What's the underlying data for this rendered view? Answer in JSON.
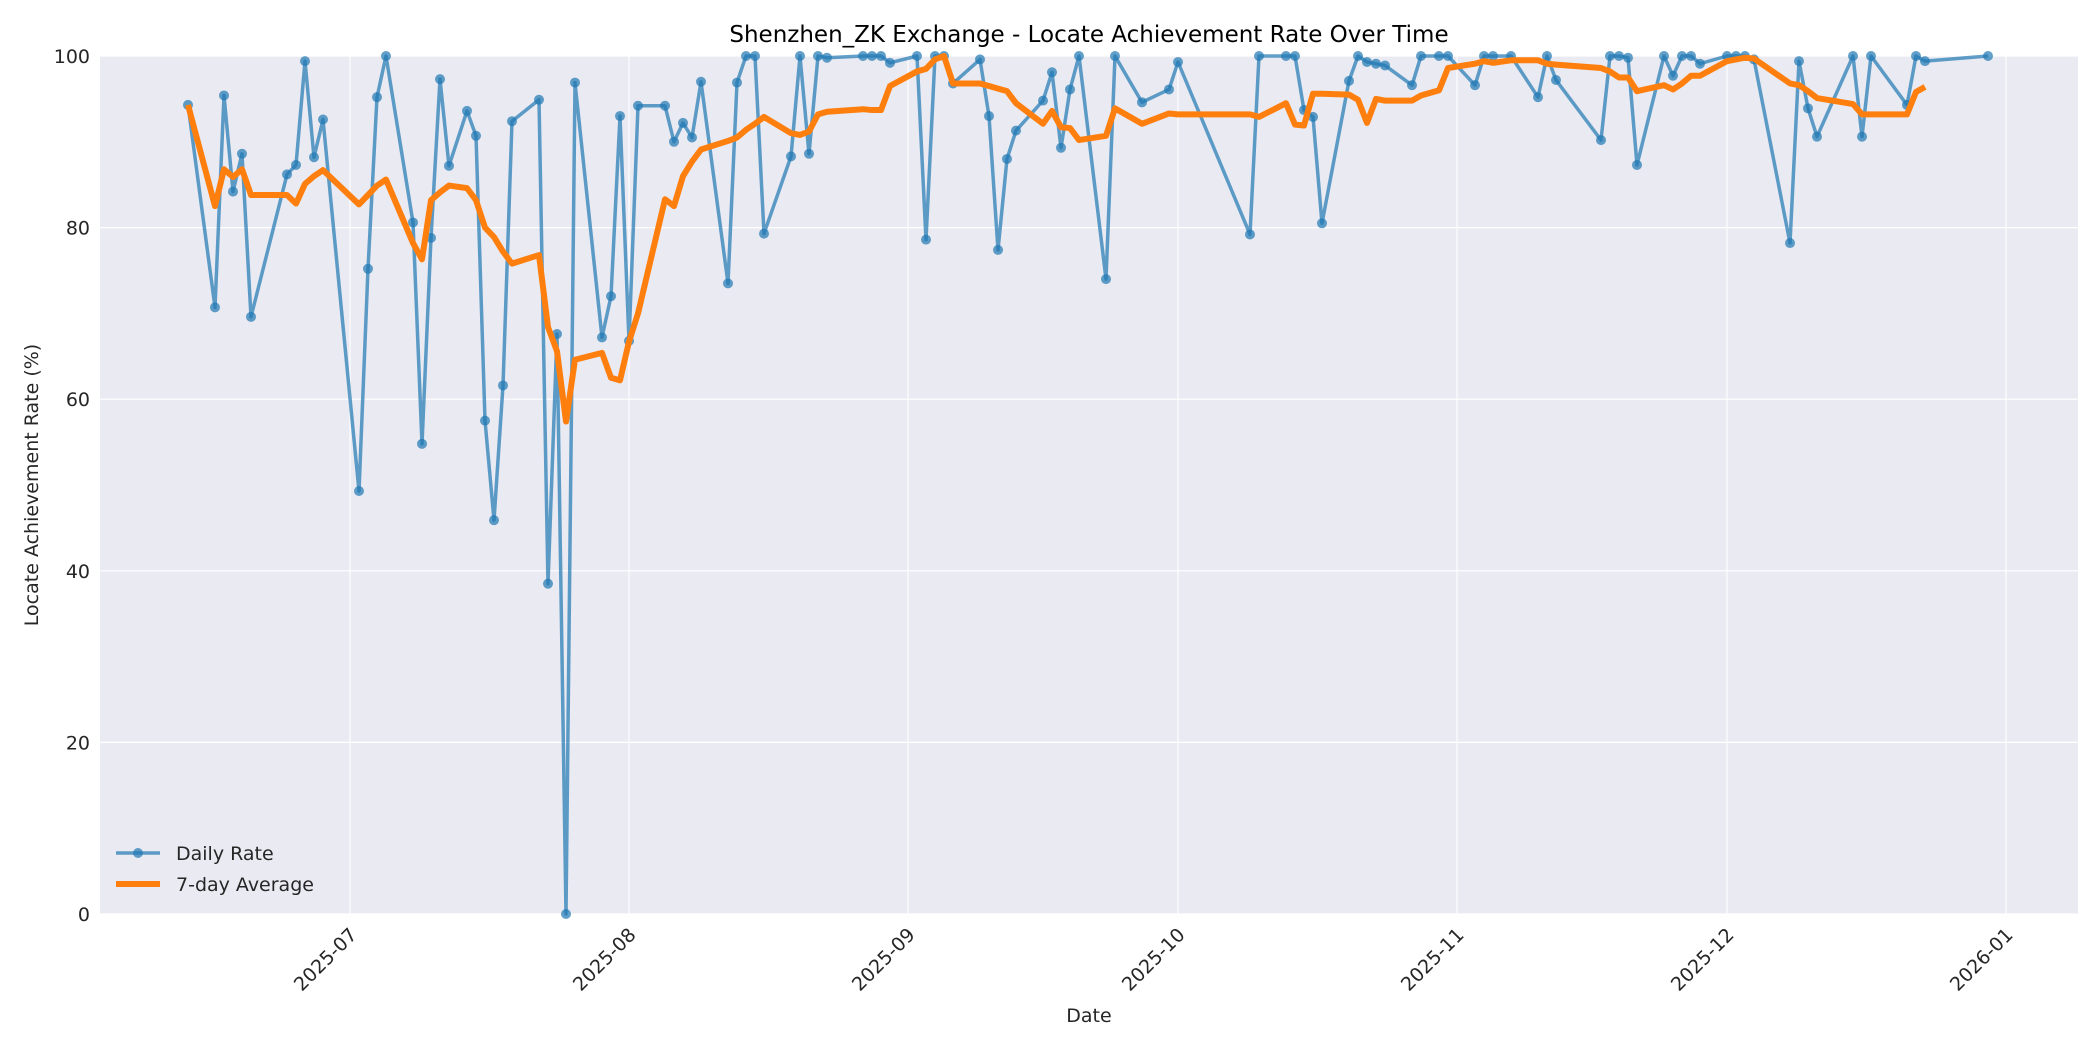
{
  "chart_data": {
    "type": "line",
    "title": "Shenzhen_ZK Exchange - Locate Achievement Rate Over Time",
    "xlabel": "Date",
    "ylabel": "Locate Achievement Rate (%)",
    "ylim": [
      0,
      100
    ],
    "yticks": [
      0,
      20,
      40,
      60,
      80,
      100
    ],
    "xticks": [
      "2025-07",
      "2025-08",
      "2025-09",
      "2025-10",
      "2025-11",
      "2025-12",
      "2026-01"
    ],
    "grid": true,
    "legend_position": "lower left",
    "colors": {
      "daily": "#1f77b4",
      "avg": "#ff7f0e",
      "plot_bg": "#eaeaf2",
      "grid": "#ffffff"
    },
    "series": [
      {
        "name": "Daily Rate",
        "dates": [
          "2025-06-13",
          "2025-06-16",
          "2025-06-17",
          "2025-06-18",
          "2025-06-19",
          "2025-06-20",
          "2025-06-24",
          "2025-06-25",
          "2025-06-26",
          "2025-06-27",
          "2025-06-28",
          "2025-07-02",
          "2025-07-03",
          "2025-07-04",
          "2025-07-05",
          "2025-07-08",
          "2025-07-09",
          "2025-07-10",
          "2025-07-11",
          "2025-07-12",
          "2025-07-14",
          "2025-07-15",
          "2025-07-16",
          "2025-07-17",
          "2025-07-18",
          "2025-07-19",
          "2025-07-22",
          "2025-07-23",
          "2025-07-24",
          "2025-07-25",
          "2025-07-26",
          "2025-07-29",
          "2025-07-30",
          "2025-07-31",
          "2025-08-01",
          "2025-08-02",
          "2025-08-05",
          "2025-08-06",
          "2025-08-07",
          "2025-08-08",
          "2025-08-09",
          "2025-08-12",
          "2025-08-13",
          "2025-08-14",
          "2025-08-15",
          "2025-08-16",
          "2025-08-19",
          "2025-08-20",
          "2025-08-21",
          "2025-08-22",
          "2025-08-23",
          "2025-08-27",
          "2025-08-28",
          "2025-08-29",
          "2025-08-30",
          "2025-09-02",
          "2025-09-03",
          "2025-09-04",
          "2025-09-05",
          "2025-09-06",
          "2025-09-09",
          "2025-09-10",
          "2025-09-11",
          "2025-09-12",
          "2025-09-13",
          "2025-09-16",
          "2025-09-17",
          "2025-09-18",
          "2025-09-19",
          "2025-09-20",
          "2025-09-23",
          "2025-09-24",
          "2025-09-27",
          "2025-09-30",
          "2025-10-01",
          "2025-10-09",
          "2025-10-10",
          "2025-10-13",
          "2025-10-14",
          "2025-10-15",
          "2025-10-16",
          "2025-10-17",
          "2025-10-20",
          "2025-10-21",
          "2025-10-22",
          "2025-10-23",
          "2025-10-24",
          "2025-10-27",
          "2025-10-28",
          "2025-10-30",
          "2025-10-31",
          "2025-11-03",
          "2025-11-04",
          "2025-11-05",
          "2025-11-07",
          "2025-11-10",
          "2025-11-11",
          "2025-11-12",
          "2025-11-17",
          "2025-11-18",
          "2025-11-19",
          "2025-11-20",
          "2025-11-21",
          "2025-11-24",
          "2025-11-25",
          "2025-11-26",
          "2025-11-27",
          "2025-11-28",
          "2025-12-01",
          "2025-12-02",
          "2025-12-03",
          "2025-12-04",
          "2025-12-08",
          "2025-12-09",
          "2025-12-10",
          "2025-12-11",
          "2025-12-15",
          "2025-12-16",
          "2025-12-17",
          "2025-12-21",
          "2025-12-22",
          "2025-12-23",
          "2025-12-30"
        ],
        "values": [
          94.3,
          70.7,
          95.4,
          84.2,
          88.6,
          69.6,
          86.2,
          87.3,
          99.4,
          88.2,
          92.6,
          49.3,
          75.2,
          95.2,
          100,
          80.6,
          54.8,
          78.8,
          97.3,
          87.2,
          93.6,
          90.7,
          57.5,
          45.9,
          61.6,
          92.4,
          94.9,
          38.5,
          67.6,
          0,
          96.9,
          67.2,
          72.0,
          93.0,
          66.8,
          94.2,
          94.2,
          90.0,
          92.2,
          90.5,
          97.0,
          73.5,
          96.9,
          100,
          100,
          79.3,
          88.3,
          100,
          88.6,
          100,
          99.8,
          100,
          100,
          100,
          99.2,
          100,
          78.6,
          100,
          100,
          96.8,
          99.6,
          93.0,
          77.4,
          88.0,
          91.3,
          94.8,
          98.1,
          89.3,
          96.1,
          100,
          74.0,
          100,
          94.6,
          96.1,
          99.3,
          79.2,
          100,
          100,
          100,
          93.7,
          92.9,
          80.5,
          97.1,
          100,
          99.3,
          99.1,
          98.9,
          96.6,
          100,
          100,
          100,
          96.6,
          100,
          100,
          100,
          95.2,
          100,
          97.2,
          90.2,
          100,
          100,
          99.8,
          87.3,
          100,
          97.7,
          100,
          100,
          99.1,
          100,
          100,
          100,
          99.6,
          78.2,
          99.4,
          93.9,
          90.6,
          100,
          90.6,
          100,
          94.3,
          100,
          99.4,
          100
        ]
      },
      {
        "name": "7-day Average",
        "dates": [
          "2025-06-13",
          "2025-06-16",
          "2025-06-17",
          "2025-06-18",
          "2025-06-19",
          "2025-06-20",
          "2025-06-24",
          "2025-06-25",
          "2025-06-26",
          "2025-06-27",
          "2025-06-28",
          "2025-07-02",
          "2025-07-03",
          "2025-07-04",
          "2025-07-05",
          "2025-07-08",
          "2025-07-09",
          "2025-07-10",
          "2025-07-11",
          "2025-07-12",
          "2025-07-14",
          "2025-07-15",
          "2025-07-16",
          "2025-07-17",
          "2025-07-18",
          "2025-07-19",
          "2025-07-22",
          "2025-07-23",
          "2025-07-24",
          "2025-07-25",
          "2025-07-26",
          "2025-07-29",
          "2025-07-30",
          "2025-07-31",
          "2025-08-01",
          "2025-08-02",
          "2025-08-05",
          "2025-08-06",
          "2025-08-07",
          "2025-08-08",
          "2025-08-09",
          "2025-08-12",
          "2025-08-13",
          "2025-08-14",
          "2025-08-15",
          "2025-08-16",
          "2025-08-19",
          "2025-08-20",
          "2025-08-21",
          "2025-08-22",
          "2025-08-23",
          "2025-08-27",
          "2025-08-28",
          "2025-08-29",
          "2025-08-30",
          "2025-09-02",
          "2025-09-03",
          "2025-09-04",
          "2025-09-05",
          "2025-09-06",
          "2025-09-09",
          "2025-09-10",
          "2025-09-11",
          "2025-09-12",
          "2025-09-13",
          "2025-09-16",
          "2025-09-17",
          "2025-09-18",
          "2025-09-19",
          "2025-09-20",
          "2025-09-23",
          "2025-09-24",
          "2025-09-27",
          "2025-09-30",
          "2025-10-01",
          "2025-10-09",
          "2025-10-10",
          "2025-10-13",
          "2025-10-14",
          "2025-10-15",
          "2025-10-16",
          "2025-10-17",
          "2025-10-20",
          "2025-10-21",
          "2025-10-22",
          "2025-10-23",
          "2025-10-24",
          "2025-10-27",
          "2025-10-28",
          "2025-10-30",
          "2025-10-31",
          "2025-11-03",
          "2025-11-04",
          "2025-11-05",
          "2025-11-07",
          "2025-11-10",
          "2025-11-11",
          "2025-11-12",
          "2025-11-17",
          "2025-11-18",
          "2025-11-19",
          "2025-11-20",
          "2025-11-21",
          "2025-11-24",
          "2025-11-25",
          "2025-11-26",
          "2025-11-27",
          "2025-11-28",
          "2025-12-01",
          "2025-12-02",
          "2025-12-03",
          "2025-12-04",
          "2025-12-08",
          "2025-12-09",
          "2025-12-10",
          "2025-12-11",
          "2025-12-15",
          "2025-12-16",
          "2025-12-17",
          "2025-12-21",
          "2025-12-22",
          "2025-12-23",
          "2025-12-30"
        ],
        "values": [
          94.3,
          82.5,
          86.8,
          85.9,
          86.8,
          83.8,
          83.8,
          82.8,
          85.1,
          86.0,
          86.7,
          82.7,
          83.8,
          84.9,
          85.6,
          78.2,
          76.3,
          83.2,
          84.1,
          84.9,
          84.6,
          83.2,
          80.0,
          78.9,
          77.2,
          75.8,
          76.8,
          68.4,
          65.6,
          57.4,
          64.6,
          65.4,
          62.5,
          62.2,
          66.7,
          70.0,
          83.3,
          82.5,
          86.0,
          87.7,
          89.1,
          90.1,
          90.5,
          91.4,
          92.1,
          92.9,
          91.0,
          90.8,
          91.2,
          93.2,
          93.5,
          93.8,
          93.7,
          93.7,
          96.5,
          98.2,
          98.5,
          99.6,
          100,
          96.8,
          96.8,
          96.5,
          96.2,
          95.9,
          94.5,
          92.1,
          93.6,
          91.7,
          91.6,
          90.2,
          90.7,
          93.9,
          92.1,
          93.3,
          93.2,
          93.2,
          92.9,
          94.5,
          92.0,
          91.9,
          95.6,
          95.6,
          95.5,
          94.9,
          92.2,
          95.0,
          94.8,
          94.8,
          95.4,
          96.0,
          98.6,
          99.1,
          99.4,
          99.2,
          99.5,
          99.5,
          99.1,
          99.0,
          98.6,
          98.2,
          97.5,
          97.5,
          95.9,
          96.6,
          96.1,
          96.8,
          97.7,
          97.7,
          99.4,
          99.6,
          99.8,
          99.7,
          96.8,
          96.6,
          95.9,
          95.1,
          94.4,
          93.2,
          93.2,
          93.2,
          95.8,
          96.4
        ]
      }
    ]
  }
}
